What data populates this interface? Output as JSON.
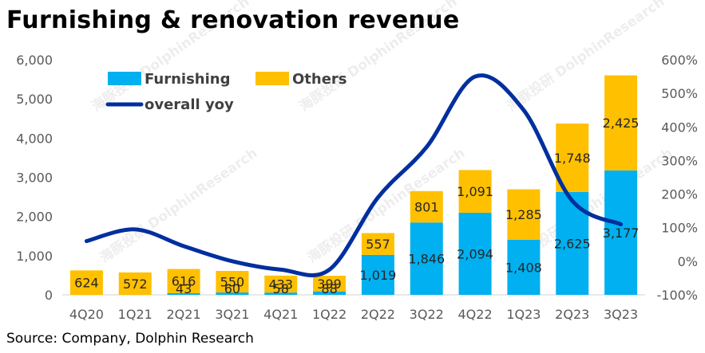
{
  "title": "Furnishing & renovation revenue",
  "source": "Source: Company, Dolphin Research",
  "watermark": "海豚投研 DolphinResearch",
  "chart_data": {
    "type": "bar",
    "stacked": true,
    "categories": [
      "4Q20",
      "1Q21",
      "2Q21",
      "3Q21",
      "4Q21",
      "1Q22",
      "2Q22",
      "3Q22",
      "4Q22",
      "1Q23",
      "2Q23",
      "3Q23"
    ],
    "series": [
      {
        "name": "Furnishing",
        "axis": "left",
        "color": "#00B0F0",
        "values": [
          0,
          0,
          43,
          60,
          58,
          88,
          1019,
          1846,
          2094,
          1408,
          2625,
          3177
        ],
        "labels": [
          "",
          "",
          "43",
          "60",
          "58",
          "88",
          "1,019",
          "1,846",
          "2,094",
          "1,408",
          "2,625",
          "3,177"
        ]
      },
      {
        "name": "Others",
        "axis": "left",
        "color": "#FFC000",
        "values": [
          624,
          572,
          616,
          550,
          433,
          399,
          557,
          801,
          1091,
          1285,
          1748,
          2425
        ],
        "labels": [
          "624",
          "572",
          "616",
          "550",
          "433",
          "399",
          "557",
          "801",
          "1,091",
          "1,285",
          "1,748",
          "2,425"
        ]
      },
      {
        "name": "overall yoy",
        "type": "line",
        "axis": "right",
        "color": "#002F9E",
        "smooth": true,
        "values": [
          0.6,
          0.95,
          0.45,
          0.0,
          -0.25,
          -0.25,
          1.9,
          3.4,
          5.5,
          4.5,
          1.8,
          1.1
        ]
      }
    ],
    "left_axis": {
      "min": 0,
      "max": 6000,
      "ticks": [
        "0",
        "1,000",
        "2,000",
        "3,000",
        "4,000",
        "5,000",
        "6,000"
      ]
    },
    "right_axis": {
      "min": -1.0,
      "max": 6.0,
      "ticks": [
        "-100%",
        "0%",
        "100%",
        "200%",
        "300%",
        "400%",
        "500%",
        "600%"
      ]
    },
    "legend": {
      "position": "top-left",
      "items": [
        {
          "label": "Furnishing",
          "color": "#00B0F0",
          "kind": "box"
        },
        {
          "label": "Others",
          "color": "#FFC000",
          "kind": "box"
        },
        {
          "label": "overall yoy",
          "color": "#002F9E",
          "kind": "line"
        }
      ]
    },
    "grid": false
  }
}
